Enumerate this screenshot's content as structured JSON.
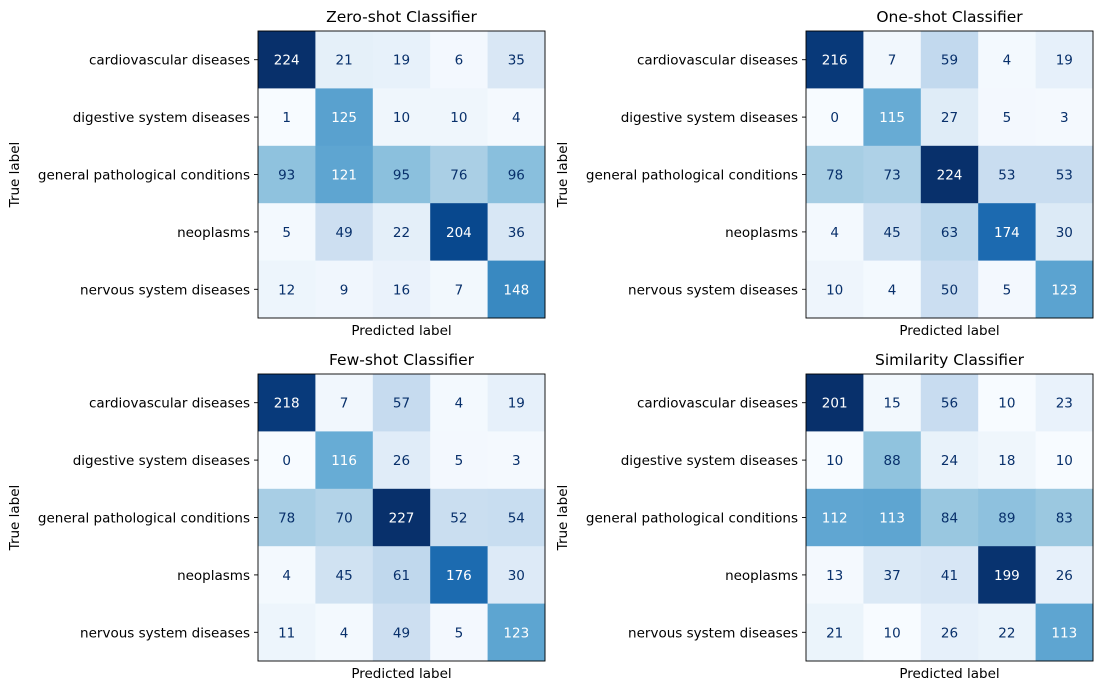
{
  "chart_data": [
    {
      "type": "heatmap",
      "title": "Zero-shot Classifier",
      "xlabel": "Predicted label",
      "ylabel": "True label",
      "row_labels": [
        "cardiovascular diseases",
        "digestive system diseases",
        "general pathological conditions",
        "neoplasms",
        "nervous system diseases"
      ],
      "values": [
        [
          224,
          21,
          19,
          6,
          35
        ],
        [
          1,
          125,
          10,
          10,
          4
        ],
        [
          93,
          121,
          95,
          76,
          96
        ],
        [
          5,
          49,
          22,
          204,
          36
        ],
        [
          12,
          9,
          16,
          7,
          148
        ]
      ]
    },
    {
      "type": "heatmap",
      "title": "One-shot Classifier",
      "xlabel": "Predicted label",
      "ylabel": "True label",
      "row_labels": [
        "cardiovascular diseases",
        "digestive system diseases",
        "general pathological conditions",
        "neoplasms",
        "nervous system diseases"
      ],
      "values": [
        [
          216,
          7,
          59,
          4,
          19
        ],
        [
          0,
          115,
          27,
          5,
          3
        ],
        [
          78,
          73,
          224,
          53,
          53
        ],
        [
          4,
          45,
          63,
          174,
          30
        ],
        [
          10,
          4,
          50,
          5,
          123
        ]
      ]
    },
    {
      "type": "heatmap",
      "title": "Few-shot Classifier",
      "xlabel": "Predicted label",
      "ylabel": "True label",
      "row_labels": [
        "cardiovascular diseases",
        "digestive system diseases",
        "general pathological conditions",
        "neoplasms",
        "nervous system diseases"
      ],
      "values": [
        [
          218,
          7,
          57,
          4,
          19
        ],
        [
          0,
          116,
          26,
          5,
          3
        ],
        [
          78,
          70,
          227,
          52,
          54
        ],
        [
          4,
          45,
          61,
          176,
          30
        ],
        [
          11,
          4,
          49,
          5,
          123
        ]
      ]
    },
    {
      "type": "heatmap",
      "title": "Similarity Classifier",
      "xlabel": "Predicted label",
      "ylabel": "True label",
      "row_labels": [
        "cardiovascular diseases",
        "digestive system diseases",
        "general pathological conditions",
        "neoplasms",
        "nervous system diseases"
      ],
      "values": [
        [
          201,
          15,
          56,
          10,
          23
        ],
        [
          10,
          88,
          24,
          18,
          10
        ],
        [
          112,
          113,
          84,
          89,
          83
        ],
        [
          13,
          37,
          41,
          199,
          26
        ],
        [
          21,
          10,
          26,
          22,
          113
        ]
      ]
    }
  ],
  "colormap": "Blues"
}
